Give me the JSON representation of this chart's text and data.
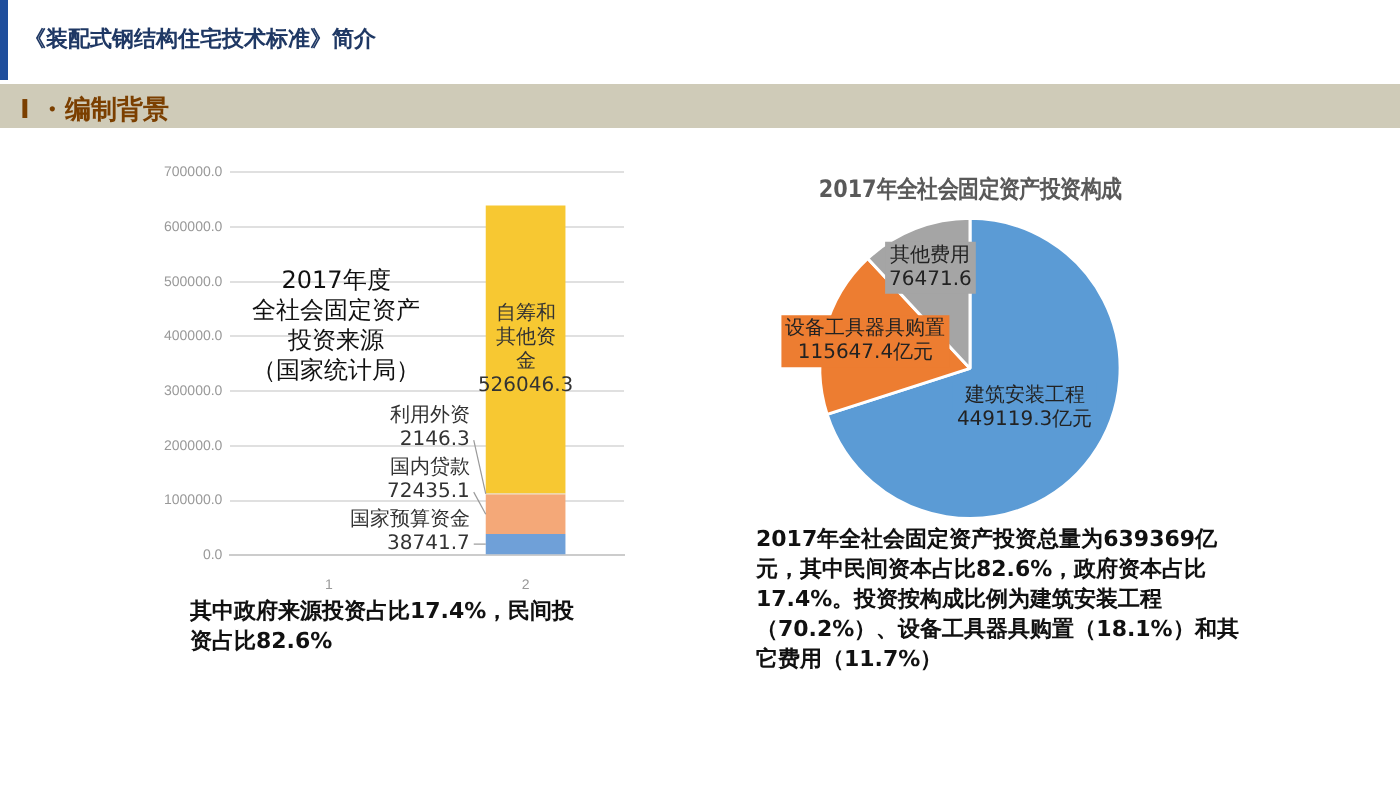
{
  "chart_data": [
    {
      "type": "bar",
      "stacked": true,
      "categories": [
        "1",
        "2"
      ],
      "series": [
        {
          "name": "国家预算资金",
          "color": "#6fa0d8",
          "values": [
            null,
            38741.7
          ]
        },
        {
          "name": "国内贷款",
          "color": "#f4a878",
          "values": [
            null,
            72435.1
          ]
        },
        {
          "name": "利用外资",
          "color": "#e8d0a0",
          "values": [
            null,
            2146.3
          ]
        },
        {
          "name": "自筹和其他资金",
          "color": "#f7c832",
          "values": [
            null,
            526046.3
          ]
        }
      ],
      "data_labels": true,
      "ylim": [
        0,
        700000
      ],
      "yticks": [
        {
          "value": 0,
          "label": "0.0"
        },
        {
          "value": 100000,
          "label": "100000.0"
        },
        {
          "value": 200000,
          "label": "200000.0"
        },
        {
          "value": 300000,
          "label": "300000.0"
        },
        {
          "value": 400000,
          "label": "400000.0"
        },
        {
          "value": 500000,
          "label": "500000.0"
        },
        {
          "value": 600000,
          "label": "600000.0"
        },
        {
          "value": 700000,
          "label": "700000.0"
        }
      ],
      "grid": "y",
      "annotations": [
        "《装配式钢结构住宅技术标准》简介",
        "I ・编制背景",
        "2017年度",
        "全社会固定资产",
        "投资来源",
        "（国家统计局）",
        "其中政府来源投资占比17.4%，民间投资占比82.6%"
      ]
    },
    {
      "type": "pie",
      "title": "2017年全社会固定资产投资构成",
      "categories": [
        "建筑安装工程",
        "设备工具器具购置",
        "其他费用"
      ],
      "values": [
        449119.3,
        115647.4,
        76471.6
      ],
      "value_labels": [
        "449119.3亿元",
        "115647.4亿元",
        "76471.6"
      ],
      "colors": [
        "#5b9bd5",
        "#ed7d31",
        "#a5a5a5"
      ],
      "annotations": [
        "2017年全社会固定资产投资总量为639369亿元，其中民间资本占比82.6%，政府资本占比17.4%。投资按构成比例为建筑安装工程（70.2%）、设备工具器具购置（18.1%）和其它费用（11.7%）"
      ]
    }
  ]
}
